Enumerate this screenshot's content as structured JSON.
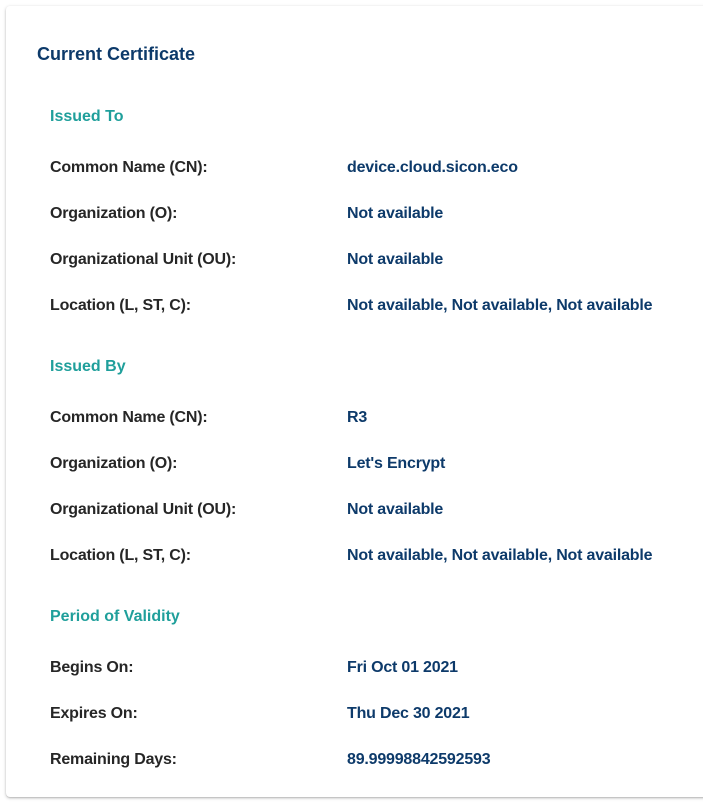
{
  "title": "Current Certificate",
  "sections": [
    {
      "heading": "Issued To",
      "rows": [
        {
          "label": "Common Name (CN):",
          "value": "device.cloud.sicon.eco"
        },
        {
          "label": "Organization (O):",
          "value": "Not available"
        },
        {
          "label": "Organizational Unit (OU):",
          "value": "Not available"
        },
        {
          "label": "Location (L, ST, C):",
          "value": "Not available, Not available, Not available"
        }
      ]
    },
    {
      "heading": "Issued By",
      "rows": [
        {
          "label": "Common Name (CN):",
          "value": "R3"
        },
        {
          "label": "Organization (O):",
          "value": "Let's Encrypt"
        },
        {
          "label": "Organizational Unit (OU):",
          "value": "Not available"
        },
        {
          "label": "Location (L, ST, C):",
          "value": "Not available, Not available, Not available"
        }
      ]
    },
    {
      "heading": "Period of Validity",
      "rows": [
        {
          "label": "Begins On:",
          "value": "Fri Oct 01 2021"
        },
        {
          "label": "Expires On:",
          "value": "Thu Dec 30 2021"
        },
        {
          "label": "Remaining Days:",
          "value": "89.99998842592593"
        }
      ]
    }
  ]
}
